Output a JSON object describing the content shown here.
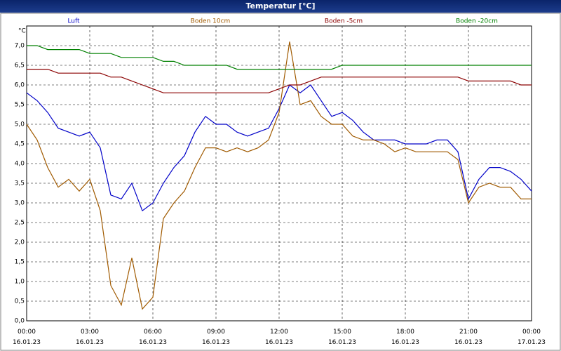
{
  "chart_data": {
    "type": "line",
    "title": "Temperatur [°C]",
    "y_label": "°C",
    "x": [
      0,
      0.5,
      1,
      1.5,
      2,
      2.5,
      3,
      3.5,
      4,
      4.5,
      5,
      5.5,
      6,
      6.5,
      7,
      7.5,
      8,
      8.5,
      9,
      9.5,
      10,
      10.5,
      11,
      11.5,
      12,
      12.5,
      13,
      13.5,
      14,
      14.5,
      15,
      15.5,
      16,
      16.5,
      17,
      17.5,
      18,
      18.5,
      19,
      19.5,
      20,
      20.5,
      21,
      21.5,
      22,
      22.5,
      23,
      23.5,
      24
    ],
    "series": [
      {
        "name": "Luft",
        "color": "#0000c8",
        "values": [
          5.8,
          5.6,
          5.3,
          4.9,
          4.8,
          4.7,
          4.8,
          4.4,
          3.2,
          3.1,
          3.5,
          2.8,
          3.0,
          3.5,
          3.9,
          4.2,
          4.8,
          5.2,
          5.0,
          5.0,
          4.8,
          4.7,
          4.8,
          4.9,
          5.4,
          6.0,
          5.8,
          6.0,
          5.6,
          5.2,
          5.3,
          5.1,
          4.8,
          4.6,
          4.6,
          4.6,
          4.5,
          4.5,
          4.5,
          4.6,
          4.6,
          4.3,
          3.1,
          3.6,
          3.9,
          3.9,
          3.8,
          3.6,
          3.3
        ]
      },
      {
        "name": "Boden 10cm",
        "color": "#a05a00",
        "values": [
          5.0,
          4.6,
          3.9,
          3.4,
          3.6,
          3.3,
          3.6,
          2.8,
          0.9,
          0.4,
          1.6,
          0.3,
          0.6,
          2.6,
          3.0,
          3.3,
          3.9,
          4.4,
          4.4,
          4.3,
          4.4,
          4.3,
          4.4,
          4.6,
          5.3,
          7.1,
          5.5,
          5.6,
          5.2,
          5.0,
          5.0,
          4.7,
          4.6,
          4.6,
          4.5,
          4.3,
          4.4,
          4.3,
          4.3,
          4.3,
          4.3,
          4.1,
          3.0,
          3.4,
          3.5,
          3.4,
          3.4,
          3.1,
          3.1
        ]
      },
      {
        "name": "Boden -5cm",
        "color": "#8b0000",
        "values": [
          6.4,
          6.4,
          6.4,
          6.3,
          6.3,
          6.3,
          6.3,
          6.3,
          6.2,
          6.2,
          6.1,
          6.0,
          5.9,
          5.8,
          5.8,
          5.8,
          5.8,
          5.8,
          5.8,
          5.8,
          5.8,
          5.8,
          5.8,
          5.8,
          5.9,
          6.0,
          6.0,
          6.1,
          6.2,
          6.2,
          6.2,
          6.2,
          6.2,
          6.2,
          6.2,
          6.2,
          6.2,
          6.2,
          6.2,
          6.2,
          6.2,
          6.2,
          6.1,
          6.1,
          6.1,
          6.1,
          6.1,
          6.0,
          6.0
        ]
      },
      {
        "name": "Boden -20cm",
        "color": "#008000",
        "values": [
          7.0,
          7.0,
          6.9,
          6.9,
          6.9,
          6.9,
          6.8,
          6.8,
          6.8,
          6.7,
          6.7,
          6.7,
          6.7,
          6.6,
          6.6,
          6.5,
          6.5,
          6.5,
          6.5,
          6.5,
          6.4,
          6.4,
          6.4,
          6.4,
          6.4,
          6.4,
          6.4,
          6.4,
          6.4,
          6.4,
          6.5,
          6.5,
          6.5,
          6.5,
          6.5,
          6.5,
          6.5,
          6.5,
          6.5,
          6.5,
          6.5,
          6.5,
          6.5,
          6.5,
          6.5,
          6.5,
          6.5,
          6.5,
          6.5
        ]
      }
    ],
    "xlim": [
      0,
      24
    ],
    "xticks": [
      {
        "value": 0,
        "label": "00:00\n16.01.23"
      },
      {
        "value": 3,
        "label": "03:00\n16.01.23"
      },
      {
        "value": 6,
        "label": "06:00\n16.01.23"
      },
      {
        "value": 9,
        "label": "09:00\n16.01.23"
      },
      {
        "value": 12,
        "label": "12:00\n16.01.23"
      },
      {
        "value": 15,
        "label": "15:00\n16.01.23"
      },
      {
        "value": 18,
        "label": "18:00\n16.01.23"
      },
      {
        "value": 21,
        "label": "21:00\n16.01.23"
      },
      {
        "value": 24,
        "label": "00:00\n17.01.23"
      }
    ],
    "ylim": [
      0,
      7.5
    ],
    "yticks": [
      {
        "value": 0,
        "label": "0,0"
      },
      {
        "value": 0.5,
        "label": "0,5"
      },
      {
        "value": 1,
        "label": "1,0"
      },
      {
        "value": 1.5,
        "label": "1,5"
      },
      {
        "value": 2,
        "label": "2,0"
      },
      {
        "value": 2.5,
        "label": "2,5"
      },
      {
        "value": 3,
        "label": "3,0"
      },
      {
        "value": 3.5,
        "label": "3,5"
      },
      {
        "value": 4,
        "label": "4,0"
      },
      {
        "value": 4.5,
        "label": "4,5"
      },
      {
        "value": 5,
        "label": "5,0"
      },
      {
        "value": 5.5,
        "label": "5,5"
      },
      {
        "value": 6,
        "label": "6,0"
      },
      {
        "value": 6.5,
        "label": "6,5"
      },
      {
        "value": 7,
        "label": "7,0"
      }
    ],
    "grid": true
  }
}
